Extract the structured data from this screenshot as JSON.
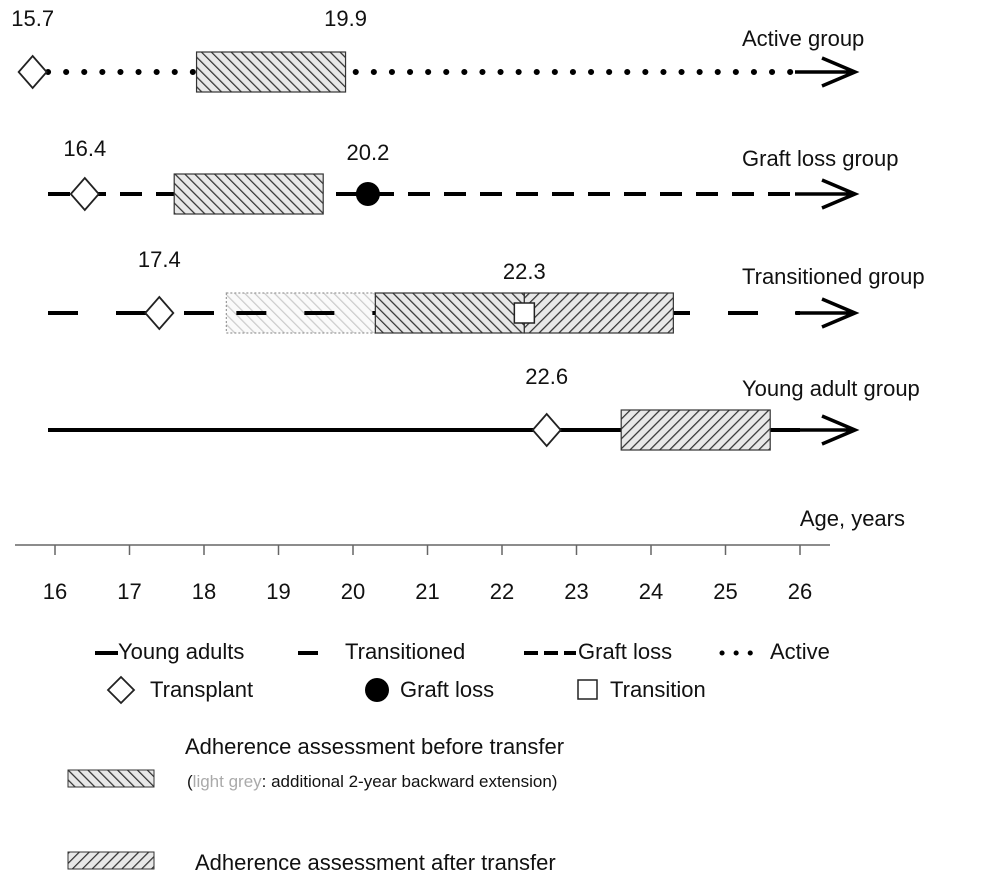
{
  "diagram": {
    "groups": [
      {
        "label": "Active group",
        "line": "dotted",
        "transplant": 15.7,
        "bars": [
          {
            "kind": "before",
            "from": 17.9,
            "to": 19.9,
            "labeled": true
          }
        ]
      },
      {
        "label": "Graft loss group",
        "line": "dashed",
        "transplant": 16.4,
        "graft_loss": 20.2,
        "bars": [
          {
            "kind": "before",
            "from": 17.6,
            "to": 19.6
          }
        ]
      },
      {
        "label": "Transitioned group",
        "line": "long-dashed",
        "transplant": 17.4,
        "transition": 22.3,
        "bars": [
          {
            "kind": "extension",
            "from": 18.3,
            "to": 20.3
          },
          {
            "kind": "before",
            "from": 20.3,
            "to": 22.3
          },
          {
            "kind": "after",
            "from": 22.3,
            "to": 24.3
          }
        ]
      },
      {
        "label": "Young adult group",
        "line": "solid",
        "transplant": 22.6,
        "bars": [
          {
            "kind": "after",
            "from": 23.6,
            "to": 25.6
          }
        ]
      }
    ],
    "xlabel": "Age, years",
    "xticks": [
      16,
      17,
      18,
      19,
      20,
      21,
      22,
      23,
      24,
      25,
      26
    ],
    "legend": {
      "lines": [
        "Young adults",
        "Transitioned",
        "Graft loss",
        "Active"
      ],
      "symbols": [
        "Transplant",
        "Graft loss",
        "Transition"
      ],
      "before": "Adherence assessment before transfer",
      "note_open": "(",
      "note_grey": "light grey",
      "note_rest": ": additional 2-year backward extension)",
      "after": "Adherence assessment after transfer"
    }
  }
}
